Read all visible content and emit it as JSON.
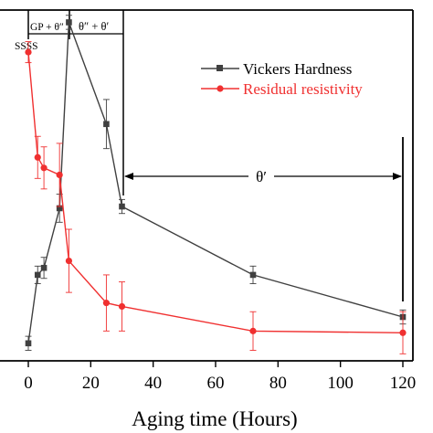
{
  "chart_data": {
    "type": "line",
    "xlabel": "Aging time (Hours)",
    "xlim": [
      -5,
      127
    ],
    "x_ticks": [
      0,
      20,
      40,
      60,
      80,
      100,
      120
    ],
    "ylim": [
      0,
      1
    ],
    "y_axis_labels_visible": false,
    "grid": false,
    "legend_position": "top-right",
    "series": [
      {
        "name": "Vickers Hardness",
        "color": "#404040",
        "marker": "square",
        "x": [
          0,
          3,
          5,
          10,
          13,
          25,
          30,
          72,
          120
        ],
        "y": [
          0.05,
          0.245,
          0.265,
          0.435,
          0.965,
          0.675,
          0.44,
          0.245,
          0.125
        ],
        "err": [
          0.02,
          0.025,
          0.03,
          0.04,
          0.02,
          0.07,
          0.02,
          0.025,
          0.02
        ]
      },
      {
        "name": "Residual resistivity",
        "color": "#f03030",
        "marker": "circle",
        "x": [
          0,
          3,
          5,
          10,
          13,
          25,
          30,
          72,
          120
        ],
        "y": [
          0.88,
          0.58,
          0.55,
          0.53,
          0.285,
          0.165,
          0.155,
          0.085,
          0.08
        ],
        "err": [
          0.03,
          0.06,
          0.06,
          0.09,
          0.09,
          0.08,
          0.07,
          0.055,
          0.06
        ]
      }
    ],
    "annotations": {
      "ssss": "SSSS",
      "gp": "GP + θ″",
      "theta_dp_theta_p": "θ″ + θ′",
      "theta_p": "θ′"
    }
  }
}
